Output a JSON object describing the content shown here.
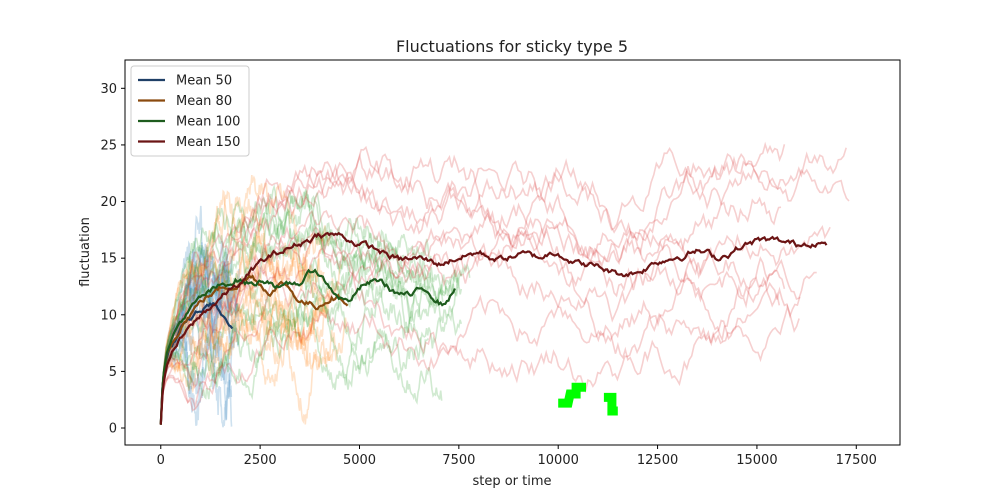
{
  "chart_data": {
    "type": "line",
    "title": "Fluctuations for sticky type 5",
    "xlabel": "step or time",
    "ylabel": "fluctuation",
    "xlim": [
      -900,
      18600
    ],
    "ylim": [
      -1.5,
      32.5
    ],
    "xticks": [
      0,
      2500,
      5000,
      7500,
      10000,
      12500,
      15000,
      17500
    ],
    "xtick_labels": [
      "0",
      "2500",
      "5000",
      "7500",
      "10000",
      "12500",
      "15000",
      "17500"
    ],
    "yticks": [
      0,
      5,
      10,
      15,
      20,
      25,
      30
    ],
    "ytick_labels": [
      "0",
      "5",
      "10",
      "15",
      "20",
      "25",
      "30"
    ],
    "grid": false,
    "legend_position": "upper-left",
    "series": [
      {
        "name": "Mean 50",
        "color": "#1f3f66",
        "x": [
          0,
          40,
          100,
          200,
          350,
          500,
          700,
          900,
          1100,
          1300,
          1500,
          1700,
          1800
        ],
        "y": [
          0.3,
          3.5,
          5.5,
          6.8,
          7.6,
          8.4,
          9.2,
          10.0,
          10.5,
          11.0,
          10.2,
          8.8,
          8.3
        ]
      },
      {
        "name": "Mean 80",
        "color": "#8a4a0f",
        "x": [
          0,
          50,
          150,
          300,
          500,
          800,
          1100,
          1500,
          1900,
          2300,
          2700,
          3100,
          3500,
          3900,
          4300,
          4700
        ],
        "y": [
          0.3,
          4.0,
          6.5,
          7.8,
          9.2,
          10.5,
          11.5,
          12.3,
          12.8,
          13.5,
          12.2,
          12.8,
          11.3,
          10.8,
          11.8,
          11.3
        ]
      },
      {
        "name": "Mean 100",
        "color": "#1e5c1e",
        "x": [
          0,
          50,
          150,
          300,
          500,
          800,
          1100,
          1500,
          1900,
          2300,
          2700,
          3100,
          3500,
          3900,
          4300,
          4700,
          5100,
          5500,
          5900,
          6300,
          6700,
          7100,
          7400
        ],
        "y": [
          0.3,
          4.2,
          6.6,
          8.0,
          9.4,
          10.6,
          11.6,
          12.4,
          13.2,
          12.7,
          13.2,
          12.3,
          12.8,
          14.0,
          12.2,
          11.2,
          12.6,
          13.0,
          12.0,
          11.6,
          12.2,
          11.0,
          12.3
        ]
      },
      {
        "name": "Mean 150",
        "color": "#6b1414",
        "x": [
          0,
          50,
          150,
          300,
          500,
          800,
          1100,
          1500,
          2000,
          2500,
          3000,
          3500,
          4000,
          4500,
          5000,
          5500,
          6000,
          6500,
          7000,
          7500,
          8000,
          8500,
          9000,
          9500,
          10000,
          10500,
          11000,
          11500,
          12000,
          12500,
          13000,
          13500,
          14000,
          14500,
          15000,
          15500,
          16000,
          16500,
          16750
        ],
        "y": [
          0.3,
          3.5,
          5.5,
          6.8,
          7.8,
          9.0,
          10.2,
          11.5,
          12.8,
          14.5,
          15.5,
          16.3,
          17.2,
          17.0,
          16.3,
          15.6,
          14.8,
          14.9,
          14.5,
          15.2,
          15.5,
          14.9,
          15.3,
          15.0,
          15.7,
          14.6,
          14.2,
          13.6,
          13.8,
          14.8,
          15.3,
          15.7,
          15.0,
          15.9,
          16.5,
          16.4,
          16.1,
          16.7,
          16.2
        ]
      }
    ],
    "background_runs": [
      {
        "color": "#1f77b4",
        "count": 10,
        "x_end": 2000,
        "spread": 4.5,
        "noise": 2.2
      },
      {
        "color": "#ff7f0e",
        "count": 10,
        "x_end": 4800,
        "spread": 4.5,
        "noise": 2.0
      },
      {
        "color": "#2ca02c",
        "count": 10,
        "x_end": 7800,
        "spread": 5.0,
        "noise": 2.0
      },
      {
        "color": "#d62728",
        "count": 10,
        "x_end": 17800,
        "spread": 7.5,
        "noise": 2.0
      }
    ],
    "markers": [
      {
        "color": "#00ff00",
        "x": [
          10000,
          10250,
          10300,
          10450,
          10450,
          10700
        ],
        "y": [
          2.2,
          2.2,
          3.0,
          3.0,
          3.6,
          3.6
        ]
      },
      {
        "color": "#00ff00",
        "x": [
          11150,
          11350,
          11350,
          11500
        ],
        "y": [
          2.7,
          2.7,
          1.5,
          1.5
        ]
      }
    ]
  }
}
